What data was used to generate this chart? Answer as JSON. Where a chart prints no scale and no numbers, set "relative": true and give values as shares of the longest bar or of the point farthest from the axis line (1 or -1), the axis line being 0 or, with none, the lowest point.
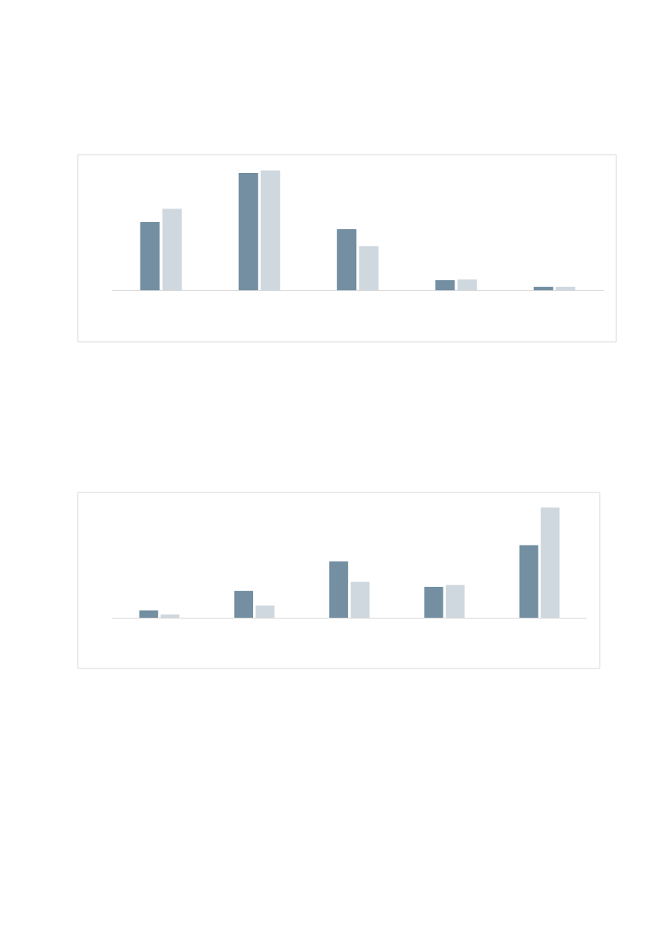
{
  "chart_data": [
    {
      "type": "bar",
      "relative": true,
      "categories": [
        null,
        null,
        null,
        null,
        null
      ],
      "series": [
        {
          "color": "#738fa1",
          "values": [
            0.57,
            0.98,
            0.51,
            0.085,
            0.028
          ]
        },
        {
          "color": "#d0d8df",
          "values": [
            0.68,
            1,
            0.37,
            0.09,
            0.028
          ]
        }
      ]
    },
    {
      "type": "bar",
      "relative": true,
      "categories": [
        null,
        null,
        null,
        null,
        null
      ],
      "series": [
        {
          "color": "#738fa1",
          "values": [
            0.067,
            0.244,
            0.511,
            0.281,
            0.659
          ]
        },
        {
          "color": "#d0d8df",
          "values": [
            0.03,
            0.111,
            0.326,
            0.296,
            1
          ]
        }
      ]
    }
  ]
}
